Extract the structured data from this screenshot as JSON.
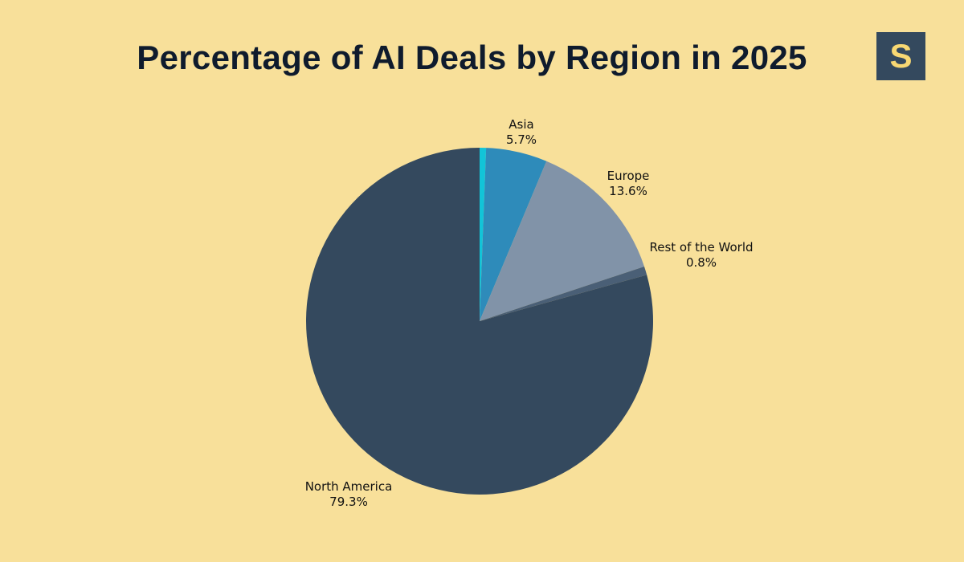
{
  "logo": {
    "letter": "S"
  },
  "chart_data": {
    "type": "pie",
    "title": "Percentage of AI Deals by Region in 2025",
    "start": "top",
    "direction": "clockwise",
    "slices": [
      {
        "name": "",
        "value": 0.6,
        "label": "",
        "color": "#12c4d8"
      },
      {
        "name": "Asia",
        "value": 5.7,
        "label": "5.7%",
        "color": "#2e8bba"
      },
      {
        "name": "Europe",
        "value": 13.6,
        "label": "13.6%",
        "color": "#8193a8"
      },
      {
        "name": "Rest of the World",
        "value": 0.8,
        "label": "0.8%",
        "color": "#4a5f76"
      },
      {
        "name": "North America",
        "value": 79.3,
        "label": "79.3%",
        "color": "#34495e"
      }
    ]
  }
}
